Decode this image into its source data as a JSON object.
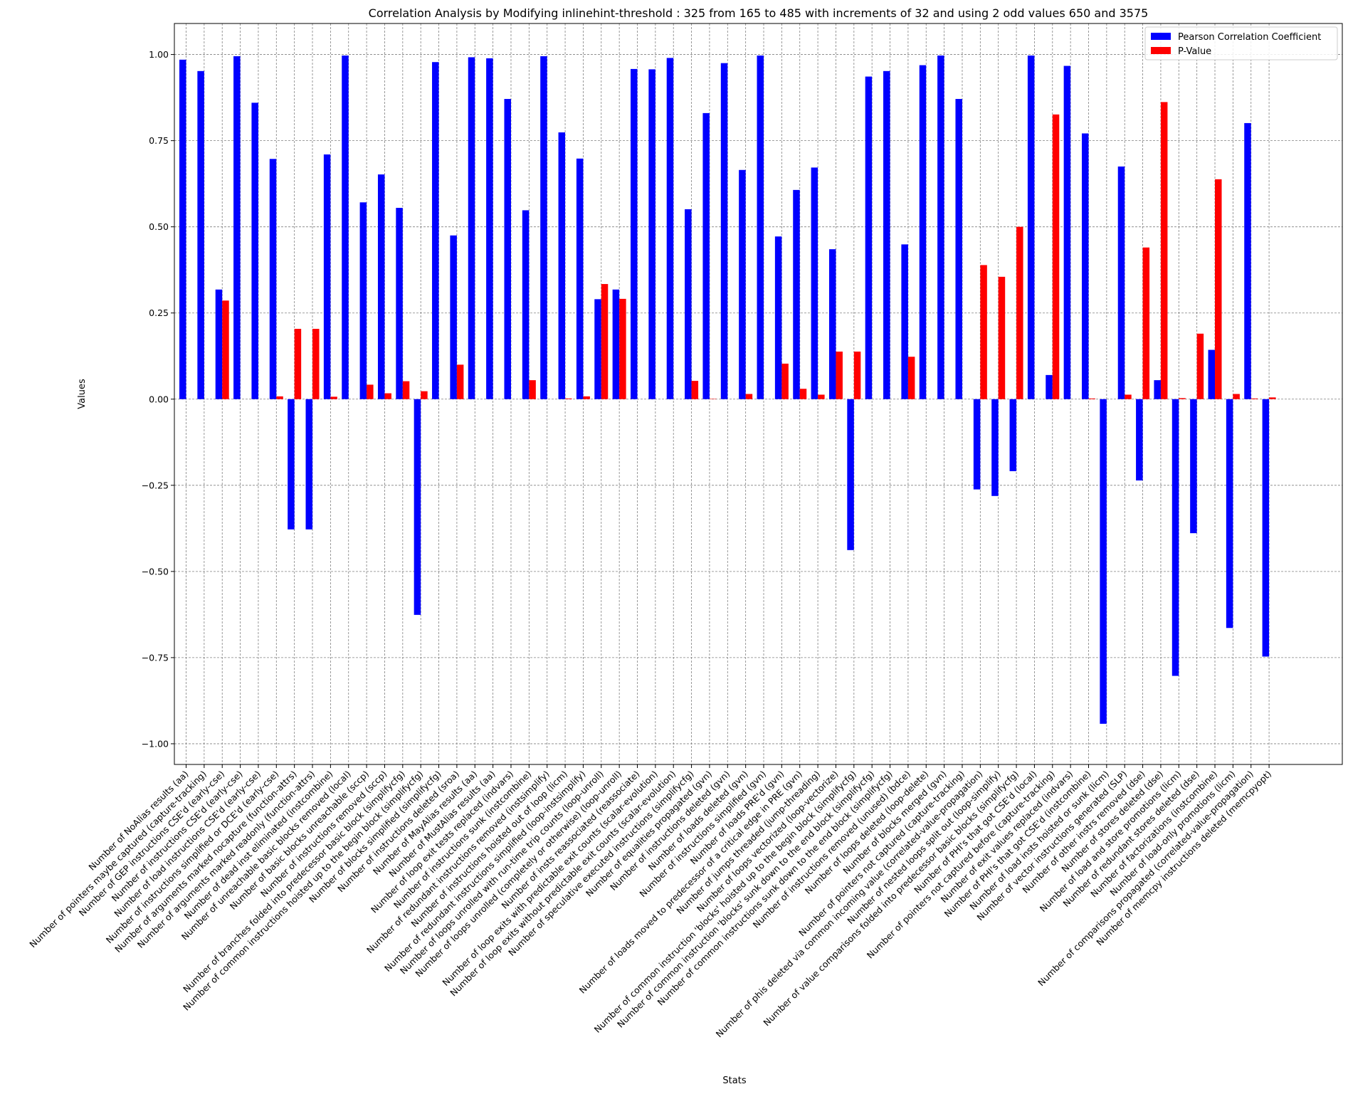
{
  "chart_data": {
    "type": "bar",
    "title": "Correlation Analysis by Modifying inlinehint-threshold : 325 from 165 to 485 with increments of 32 and using 2 odd values 650 and 3575",
    "xlabel": "Stats",
    "ylabel": "Values",
    "ylim": [
      -1.06,
      1.09
    ],
    "yticks": [
      -1.0,
      -0.75,
      -0.5,
      -0.25,
      0.0,
      0.25,
      0.5,
      0.75,
      1.0
    ],
    "ytick_labels": [
      "−1.00",
      "−0.75",
      "−0.50",
      "−0.25",
      "0.00",
      "0.25",
      "0.50",
      "0.75",
      "1.00"
    ],
    "grid": true,
    "legend_position": "top-right",
    "colors": {
      "pearson": "#0000ff",
      "pvalue": "#ff0000",
      "grid": "#808080"
    },
    "categories": [
      "Number of NoAlias results (aa)",
      "Number of pointers maybe captured (capture-tracking)",
      "Number of GEP instructions CSE'd (early-cse)",
      "Number of instructions CSE'd (early-cse)",
      "Number of load instructions CSE'd (early-cse)",
      "Number of instructions simplified or DCE'd (early-cse)",
      "Number of arguments marked nocapture (function-attrs)",
      "Number of arguments marked readonly (function-attrs)",
      "Number of dead inst eliminated (instcombine)",
      "Number of unreachable basic blocks removed (local)",
      "Number of basic blocks unreachable (sccp)",
      "Number of instructions removed (sccp)",
      "Number of branches folded into predecessor basic block (simplifycfg)",
      "Number of common instructions hoisted up to the begin block (simplifycfg)",
      "Number of blocks simplified (simplifycfg)",
      "Number of instructions deleted (sroa)",
      "Number of MayAlias results (aa)",
      "Number of MustAlias results (aa)",
      "Number of loop exit tests replaced (indvars)",
      "Number of instructions sunk (instcombine)",
      "Number of redundant instructions removed (instsimplify)",
      "Number of instructions hoisted out of loop (licm)",
      "Number of redundant instructions simplified (loop-instsimplify)",
      "Number of loops unrolled with run-time trip counts (loop-unroll)",
      "Number of loops unrolled (completely or otherwise) (loop-unroll)",
      "Number of insts reassociated (reassociate)",
      "Number of loop exits with predictable exit counts (scalar-evolution)",
      "Number of loop exits without predictable exit counts (scalar-evolution)",
      "Number of speculative executed instructions (simplifycfg)",
      "Number of equalities propagated (gvn)",
      "Number of instructions deleted (gvn)",
      "Number of loads deleted (gvn)",
      "Number of instructions simplified (gvn)",
      "Number of loads PRE'd (gvn)",
      "Number of loads moved to predecessor of a critical edge in PRE (gvn)",
      "Number of jumps threaded (jump-threading)",
      "Number of loops vectorized (loop-vectorize)",
      "Number of common instruction 'blocks' hoisted up to the begin block (simplifycfg)",
      "Number of common instruction 'blocks' sunk down to the end block (simplifycfg)",
      "Number of common instructions sunk down to the end block (simplifycfg)",
      "Number of instructions removed (unused) (bdce)",
      "Number of loops deleted (loop-delete)",
      "Number of blocks merged (gvn)",
      "Number of pointers not captured (capture-tracking)",
      "Number of phis deleted via common incoming value (correlated-value-propagation)",
      "Number of nested loops split out (loop-simplify)",
      "Number of value comparisons folded into predecessor basic blocks (simplifycfg)",
      "Number of PHI's that got CSE'd (local)",
      "Number of pointers not captured before (capture-tracking)",
      "Number of exit values replaced (indvars)",
      "Number of PHI's that got CSE'd (instcombine)",
      "Number of load insts hoisted or sunk (licm)",
      "Number of vector instructions generated (SLP)",
      "Number of other instrs removed (dse)",
      "Number of stores deleted (dse)",
      "Number of load and store promotions (licm)",
      "Number of redundant stores deleted (dse)",
      "Number of factorizations (instcombine)",
      "Number of load-only promotions (licm)",
      "Number of comparisons propagated (correlated-value-propagation)",
      "Number of memcpy instructions deleted (memcpyopt)"
    ],
    "series": [
      {
        "name": "Pearson Correlation Coefficient",
        "color": "#0000ff",
        "values": [
          0.985,
          0.952,
          0.318,
          0.995,
          0.86,
          0.697,
          -0.378,
          -0.378,
          0.71,
          0.997,
          0.571,
          0.652,
          0.555,
          -0.626,
          0.978,
          0.475,
          0.992,
          0.989,
          0.871,
          0.548,
          0.995,
          0.774,
          0.698,
          0.29,
          0.318,
          0.958,
          0.957,
          0.99,
          0.551,
          0.83,
          0.975,
          0.665,
          0.997,
          0.472,
          0.607,
          0.672,
          0.435,
          -0.438,
          0.936,
          0.952,
          0.449,
          0.969,
          0.997,
          0.871,
          -0.262,
          -0.281,
          -0.209,
          0.997,
          0.07,
          0.967,
          0.771,
          -0.942,
          0.675,
          -0.236,
          0.055,
          -0.803,
          -0.389,
          0.143,
          -0.664,
          0.801,
          -0.747
        ]
      },
      {
        "name": "P-Value",
        "color": "#ff0000",
        "values": [
          0.0,
          0.0,
          0.286,
          0.0,
          0.0,
          0.008,
          0.204,
          0.204,
          0.007,
          0.0,
          0.042,
          0.017,
          0.052,
          0.023,
          0.0,
          0.1,
          0.0,
          0.0,
          0.0,
          0.055,
          0.0,
          0.002,
          0.008,
          0.334,
          0.291,
          0.0,
          0.0,
          0.0,
          0.053,
          0.001,
          0.0,
          0.015,
          0.0,
          0.103,
          0.03,
          0.013,
          0.138,
          0.138,
          0.0,
          0.0,
          0.123,
          0.0,
          0.0,
          0.0,
          0.389,
          0.355,
          0.5,
          0.0,
          0.826,
          0.0,
          0.002,
          0.0,
          0.013,
          0.44,
          0.862,
          0.003,
          0.19,
          0.638,
          0.015,
          0.002,
          0.005
        ]
      }
    ]
  }
}
